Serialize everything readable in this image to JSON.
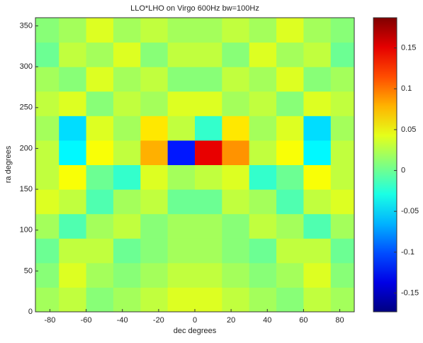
{
  "chart_data": {
    "type": "heatmap",
    "title": "LLO*LHO on Virgo 600Hz bw=100Hz",
    "x_label": "dec degrees",
    "y_label": "ra degrees",
    "colormap": "jet",
    "x": [
      -82.5,
      -67.5,
      -52.5,
      -37.5,
      -22.5,
      -7.5,
      7.5,
      22.5,
      37.5,
      52.5,
      67.5,
      82.5
    ],
    "y": [
      15,
      45,
      75,
      105,
      135,
      165,
      195,
      225,
      255,
      285,
      315,
      345
    ],
    "z": [
      [
        0.02,
        0.03,
        0.01,
        0.02,
        0.03,
        0.04,
        0.04,
        0.03,
        0.02,
        0.01,
        0.03,
        0.02
      ],
      [
        0.01,
        0.04,
        0.02,
        0.01,
        0.02,
        0.03,
        0.03,
        0.02,
        0.01,
        0.02,
        0.04,
        0.01
      ],
      [
        0.0,
        0.03,
        0.03,
        0.0,
        0.01,
        0.02,
        0.02,
        0.01,
        0.0,
        0.03,
        0.03,
        0.0
      ],
      [
        0.02,
        -0.01,
        0.02,
        0.03,
        0.01,
        0.02,
        0.02,
        0.01,
        0.03,
        0.02,
        -0.01,
        0.02
      ],
      [
        0.04,
        0.03,
        -0.01,
        0.02,
        0.03,
        0.0,
        0.0,
        0.03,
        0.02,
        -0.01,
        0.03,
        0.04
      ],
      [
        0.03,
        0.05,
        0.0,
        -0.02,
        0.04,
        0.02,
        0.03,
        0.04,
        -0.02,
        0.0,
        0.05,
        0.03
      ],
      [
        0.03,
        -0.04,
        0.05,
        0.03,
        0.08,
        -0.12,
        0.15,
        0.09,
        0.03,
        0.05,
        -0.04,
        0.03
      ],
      [
        0.02,
        -0.05,
        0.04,
        0.02,
        0.06,
        0.03,
        -0.02,
        0.06,
        0.02,
        0.04,
        -0.05,
        0.02
      ],
      [
        0.03,
        0.04,
        0.01,
        0.03,
        0.02,
        0.04,
        0.04,
        0.02,
        0.03,
        0.01,
        0.04,
        0.03
      ],
      [
        0.02,
        0.01,
        0.04,
        0.02,
        0.03,
        0.01,
        0.01,
        0.03,
        0.02,
        0.04,
        0.01,
        0.02
      ],
      [
        0.0,
        0.03,
        0.02,
        0.04,
        0.01,
        0.03,
        0.03,
        0.01,
        0.04,
        0.02,
        0.03,
        0.0
      ],
      [
        0.01,
        0.02,
        0.04,
        0.02,
        0.03,
        0.02,
        0.02,
        0.03,
        0.02,
        0.04,
        0.02,
        0.01
      ]
    ],
    "xlim": [
      -88,
      88
    ],
    "xticks": [
      -80,
      -60,
      -40,
      -20,
      0,
      20,
      40,
      60,
      80
    ],
    "ylim": [
      0,
      360
    ],
    "yticks": [
      0,
      50,
      100,
      150,
      200,
      250,
      300,
      350
    ],
    "clim": [
      -0.173,
      0.187
    ],
    "cticks": [
      -0.15,
      -0.1,
      -0.05,
      0,
      0.05,
      0.1,
      0.15
    ]
  }
}
